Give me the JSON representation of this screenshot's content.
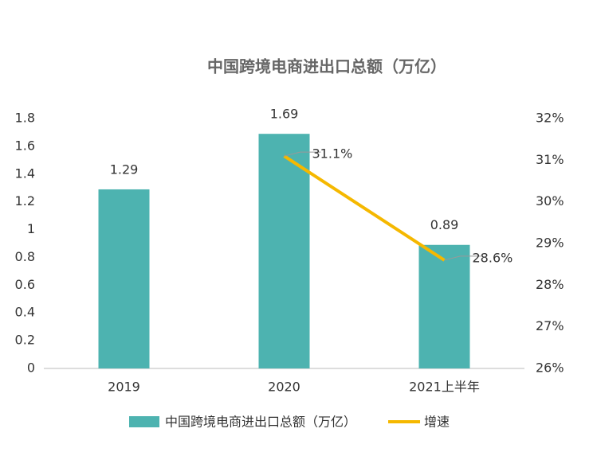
{
  "chart_data": {
    "type": "bar-line",
    "title": "中国跨境电商进出口总额（万亿）",
    "categories": [
      "2019",
      "2020",
      "2021上半年"
    ],
    "series": [
      {
        "name": "中国跨境电商进出口总额（万亿）",
        "color": "#4db3b0",
        "type": "bar",
        "values": [
          1.29,
          1.69,
          0.89
        ]
      },
      {
        "name": "增速",
        "color": "#f5b800",
        "type": "line",
        "axis": "y2",
        "values": [
          null,
          31.1,
          28.6
        ],
        "value_labels": [
          null,
          "31.1%",
          "28.6%"
        ]
      }
    ],
    "ylim": [
      0,
      1.8
    ],
    "yticks": [
      0,
      0.2,
      0.4,
      0.6,
      0.8,
      1,
      1.2,
      1.4,
      1.6,
      1.8
    ],
    "y2lim": [
      26,
      32
    ],
    "y2ticks": [
      {
        "value": 26,
        "label": "26%"
      },
      {
        "value": 27,
        "label": "27%"
      },
      {
        "value": 28,
        "label": "28%"
      },
      {
        "value": 29,
        "label": "29%"
      },
      {
        "value": 30,
        "label": "30%"
      },
      {
        "value": 31,
        "label": "31%"
      },
      {
        "value": 32,
        "label": "32%"
      }
    ],
    "grid": false,
    "legend": "bottom"
  }
}
